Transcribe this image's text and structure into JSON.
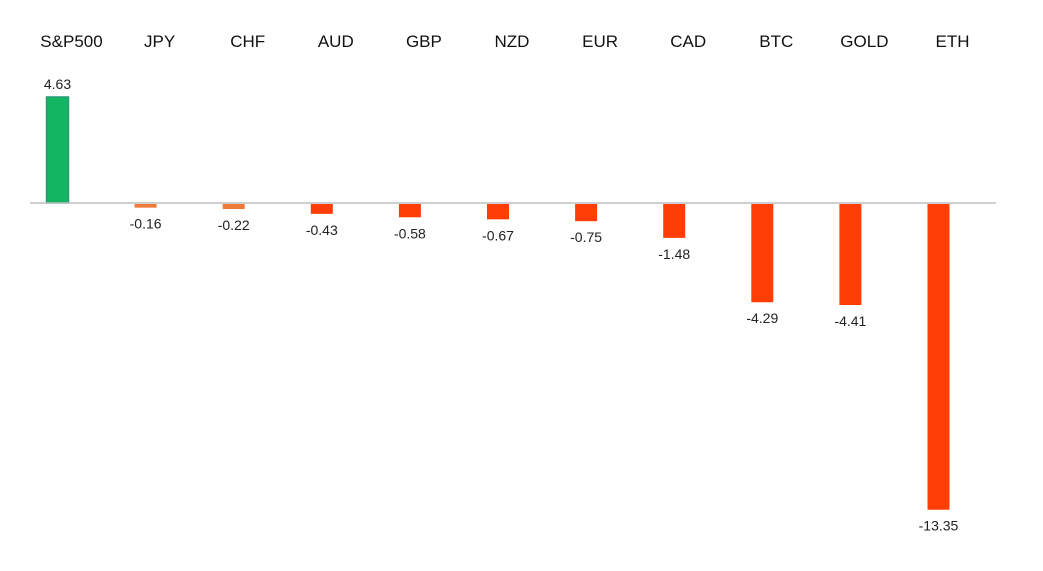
{
  "chart_data": {
    "type": "bar",
    "categories": [
      "S&P500",
      "JPY",
      "CHF",
      "AUD",
      "GBP",
      "NZD",
      "EUR",
      "CAD",
      "BTC",
      "GOLD",
      "ETH"
    ],
    "values": [
      4.63,
      -0.16,
      -0.22,
      -0.43,
      -0.58,
      -0.67,
      -0.75,
      -1.48,
      -4.29,
      -4.41,
      -13.35
    ],
    "value_labels": [
      "4.63",
      "-0.16",
      "-0.22",
      "-0.43",
      "-0.58",
      "-0.67",
      "-0.75",
      "-1.48",
      "-4.29",
      "-4.41",
      "-13.35"
    ],
    "title": "",
    "xlabel": "",
    "ylabel": "",
    "ylim": [
      -13.35,
      4.63
    ],
    "grid": false,
    "legend": "none",
    "colors": {
      "positive": "#13b562",
      "positive_edge": "#2a9a78",
      "negative": "#ff3d05",
      "negative_light": "#f07a3a",
      "axis": "#bfbfbf"
    }
  }
}
